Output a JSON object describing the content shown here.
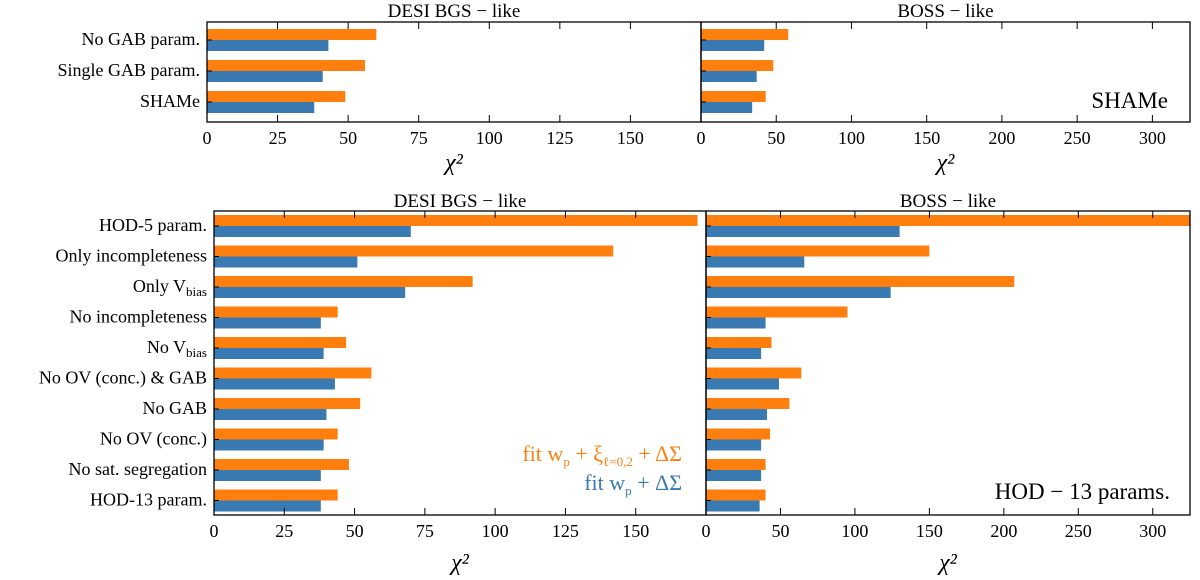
{
  "colors": {
    "orange": "#ff7f0e",
    "blue": "#3a7ab2"
  },
  "legend": {
    "orange_prefix": "fit w",
    "orange_p": "p",
    "orange_mid": " + ξ",
    "orange_sub": "ℓ=0,2",
    "orange_end": " + ΔΣ",
    "blue_prefix": "fit w",
    "blue_p": "p",
    "blue_end": " + ΔΣ"
  },
  "chart_data": [
    {
      "type": "bar",
      "orientation": "horizontal",
      "title": "DESI BGS − like",
      "xlabel": "χ²",
      "xlim": [
        0,
        175
      ],
      "xticks": [
        0,
        25,
        50,
        75,
        100,
        125,
        150
      ],
      "categories": [
        "No GAB param.",
        "Single GAB param.",
        "SHAMe"
      ],
      "series": [
        {
          "name": "fit w_p + ξ_ℓ=0,2 + ΔΣ",
          "color": "orange",
          "values": [
            60,
            56,
            49
          ]
        },
        {
          "name": "fit w_p + ΔΣ",
          "color": "blue",
          "values": [
            43,
            41,
            38
          ]
        }
      ]
    },
    {
      "type": "bar",
      "orientation": "horizontal",
      "title": "BOSS − like",
      "xlabel": "χ²",
      "xlim": [
        0,
        325
      ],
      "xticks": [
        0,
        50,
        100,
        150,
        200,
        250,
        300
      ],
      "annotation": "SHAMe",
      "categories": [
        "No GAB param.",
        "Single GAB param.",
        "SHAMe"
      ],
      "series": [
        {
          "name": "fit w_p + ξ_ℓ=0,2 + ΔΣ",
          "color": "orange",
          "values": [
            58,
            48,
            43
          ]
        },
        {
          "name": "fit w_p + ΔΣ",
          "color": "blue",
          "values": [
            42,
            37,
            34
          ]
        }
      ]
    },
    {
      "type": "bar",
      "orientation": "horizontal",
      "title": "DESI BGS − like",
      "xlabel": "χ²",
      "xlim": [
        0,
        175
      ],
      "xticks": [
        0,
        25,
        50,
        75,
        100,
        125,
        150
      ],
      "categories": [
        "HOD-5 param.",
        "Only incompleteness",
        "Only V_bias",
        "No incompleteness",
        "No V_bias",
        "No OV (conc.) & GAB",
        "No GAB",
        "No OV (conc.)",
        "No sat. segregation",
        "HOD-13 param."
      ],
      "series": [
        {
          "name": "fit w_p + ξ_ℓ=0,2 + ΔΣ",
          "color": "orange",
          "values": [
            172,
            142,
            92,
            44,
            47,
            56,
            52,
            44,
            48,
            44
          ]
        },
        {
          "name": "fit w_p + ΔΣ",
          "color": "blue",
          "values": [
            70,
            51,
            68,
            38,
            39,
            43,
            40,
            39,
            38,
            38
          ]
        }
      ]
    },
    {
      "type": "bar",
      "orientation": "horizontal",
      "title": "BOSS − like",
      "xlabel": "χ²",
      "xlim": [
        0,
        325
      ],
      "xticks": [
        0,
        50,
        100,
        150,
        200,
        250,
        300
      ],
      "annotation": "HOD − 13 params.",
      "categories": [
        "HOD-5 param.",
        "Only incompleteness",
        "Only V_bias",
        "No incompleteness",
        "No V_bias",
        "No OV (conc.) & GAB",
        "No GAB",
        "No OV (conc.)",
        "No sat. segregation",
        "HOD-13 param."
      ],
      "series": [
        {
          "name": "fit w_p + ξ_ℓ=0,2 + ΔΣ",
          "color": "orange",
          "values": [
            325,
            150,
            207,
            95,
            44,
            64,
            56,
            43,
            40,
            40
          ]
        },
        {
          "name": "fit w_p + ΔΣ",
          "color": "blue",
          "values": [
            130,
            66,
            124,
            40,
            37,
            49,
            41,
            37,
            37,
            36
          ]
        }
      ]
    }
  ]
}
